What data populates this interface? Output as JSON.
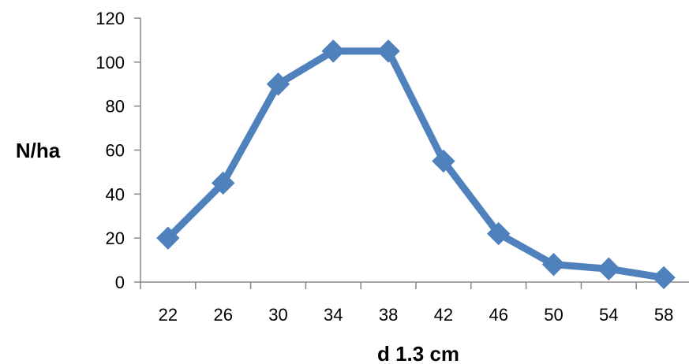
{
  "chart_data": {
    "type": "line",
    "categories": [
      "22",
      "26",
      "30",
      "34",
      "38",
      "42",
      "46",
      "50",
      "54",
      "58"
    ],
    "values": [
      20,
      45,
      90,
      105,
      105,
      55,
      22,
      8,
      6,
      2
    ],
    "title": "",
    "xlabel": "d 1.3 cm",
    "ylabel": "N/ha",
    "ylim": [
      0,
      120
    ],
    "yticks": [
      0,
      20,
      40,
      60,
      80,
      100,
      120
    ],
    "grid": false,
    "legend": "none",
    "marker": "diamond",
    "series_color": "#4f81bd",
    "axis_color": "#878787"
  }
}
